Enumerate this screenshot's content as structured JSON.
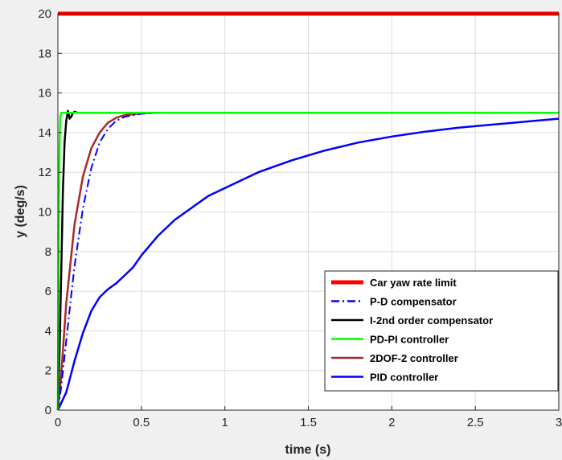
{
  "chart_data": {
    "type": "line",
    "title": "",
    "xlabel": "time (s)",
    "ylabel": "y (deg/s)",
    "xlim": [
      0,
      3
    ],
    "ylim": [
      0,
      20
    ],
    "xticks": [
      0,
      0.5,
      1,
      1.5,
      2,
      2.5,
      3
    ],
    "yticks": [
      0,
      2,
      4,
      6,
      8,
      10,
      12,
      14,
      16,
      18,
      20
    ],
    "xtick_labels": [
      "0",
      "0.5",
      "1",
      "1.5",
      "2",
      "2.5",
      "3"
    ],
    "ytick_labels": [
      "0",
      "2",
      "4",
      "6",
      "8",
      "10",
      "12",
      "14",
      "16",
      "18",
      "20"
    ],
    "grid": true,
    "legend_position": "bottom-right",
    "series": [
      {
        "name": "Car yaw rate limit",
        "color": "#ff0000",
        "style": "solid",
        "x": [
          0,
          3
        ],
        "y": [
          20,
          20
        ]
      },
      {
        "name": "P-D compensator",
        "color": "#0000ff",
        "style": "dashdot",
        "x": [
          0,
          0.02,
          0.05,
          0.08,
          0.1,
          0.15,
          0.2,
          0.25,
          0.3,
          0.35,
          0.4,
          0.5,
          0.6,
          0.8,
          1.0,
          2.0,
          3.0
        ],
        "y": [
          0,
          1.2,
          3.5,
          5.8,
          7.3,
          10.2,
          12.2,
          13.5,
          14.2,
          14.6,
          14.8,
          14.95,
          15,
          15,
          15,
          15,
          15
        ]
      },
      {
        "name": "I-2nd order compensator",
        "color": "#000000",
        "style": "solid",
        "x": [
          0,
          0.01,
          0.02,
          0.03,
          0.04,
          0.05,
          0.06,
          0.07,
          0.08,
          0.09,
          0.1,
          0.12,
          0.15,
          3.0
        ],
        "y": [
          0,
          3,
          7,
          11,
          13.5,
          14.6,
          15.1,
          14.7,
          14.8,
          15,
          15.05,
          15,
          15,
          15
        ]
      },
      {
        "name": "PD-PI controller",
        "color": "#00ff00",
        "style": "solid",
        "x": [
          0,
          0.003,
          0.006,
          0.01,
          0.015,
          0.02,
          3.0
        ],
        "y": [
          0,
          5,
          10,
          13.5,
          14.8,
          15,
          15
        ]
      },
      {
        "name": "2DOF-2 controller",
        "color": "#a52a2a",
        "style": "solid",
        "x": [
          0,
          0.02,
          0.05,
          0.1,
          0.15,
          0.2,
          0.25,
          0.3,
          0.35,
          0.4,
          0.5,
          0.6,
          0.8,
          1.0,
          2.0,
          3.0
        ],
        "y": [
          0,
          1.8,
          5.4,
          9.4,
          11.8,
          13.2,
          14,
          14.5,
          14.75,
          14.88,
          14.97,
          15,
          15,
          15,
          15,
          15
        ]
      },
      {
        "name": "PID controller",
        "color": "#0000ff",
        "style": "solid",
        "x": [
          0,
          0.05,
          0.1,
          0.15,
          0.2,
          0.25,
          0.3,
          0.35,
          0.4,
          0.45,
          0.5,
          0.6,
          0.7,
          0.8,
          0.9,
          1.0,
          1.2,
          1.4,
          1.6,
          1.8,
          2.0,
          2.2,
          2.4,
          2.6,
          2.8,
          3.0
        ],
        "y": [
          0,
          0.9,
          2.5,
          3.9,
          5.0,
          5.7,
          6.1,
          6.4,
          6.8,
          7.2,
          7.8,
          8.8,
          9.6,
          10.2,
          10.8,
          11.2,
          12.0,
          12.6,
          13.1,
          13.5,
          13.8,
          14.05,
          14.25,
          14.4,
          14.55,
          14.7
        ]
      }
    ]
  }
}
